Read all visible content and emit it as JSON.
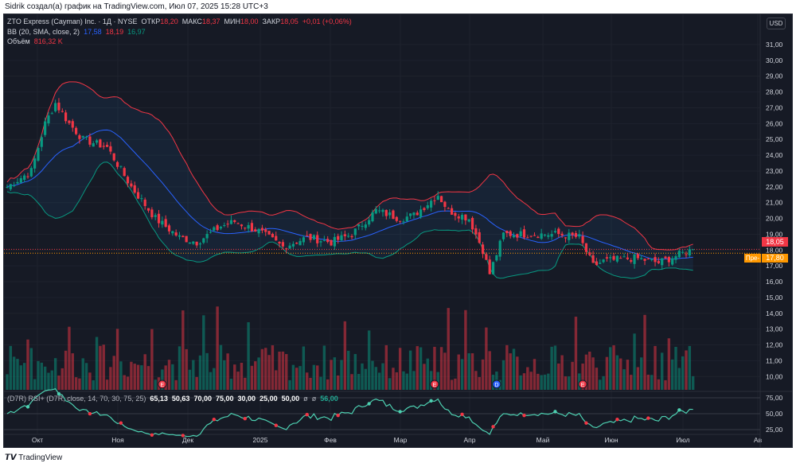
{
  "credit": "Sidrik создал(а) график на TradingView.com, Июл 07, 2025 15:28 UTC+3",
  "legend": {
    "symbol": "ZTO Express (Cayman) Inc. · 1Д · NYSE",
    "open_label": "ОТКР",
    "open": "18,20",
    "high_label": "МАКС",
    "high": "18,37",
    "low_label": "МИН",
    "low": "18,00",
    "close_label": "ЗАКР",
    "close": "18,05",
    "change": "+0,01 (+0,06%)",
    "bb_label": "BB (20, SMA, close, 2)",
    "bb_basis": "17,58",
    "bb_upper": "18,19",
    "bb_lower": "16,97",
    "vol_label": "Объём",
    "vol": "816,32 K"
  },
  "rsi_legend": {
    "label": "(D7R) RSI+ (D7R, close, 14, 70, 30, 75, 25)",
    "values": [
      "65,13",
      "50,63",
      "70,00",
      "75,00",
      "30,00",
      "25,00",
      "50,00",
      "ø",
      "ø"
    ],
    "last": "56,00"
  },
  "currency": "USD",
  "price_labels": {
    "last": "18,05",
    "pre_tag": "Пре-",
    "pre": "17,80"
  },
  "footer_logo": "TradingView",
  "colors": {
    "up": "#089981",
    "down": "#f23645",
    "bb_upper": "#f23645",
    "bb_basis": "#2962ff",
    "bb_lower": "#089981",
    "rsi": "#4dd0b1"
  },
  "chart_data": {
    "type": "candlestick",
    "symbol": "ZTO",
    "interval": "1D",
    "price_ticks": [
      "31,00",
      "30,00",
      "29,00",
      "28,00",
      "27,00",
      "26,00",
      "25,00",
      "24,00",
      "23,00",
      "22,00",
      "21,00",
      "20,00",
      "19,00",
      "18,00",
      "17,00",
      "16,00",
      "15,00",
      "14,00",
      "13,00",
      "12,00",
      "11,00",
      "10,00"
    ],
    "rsi_ticks": [
      "75,00",
      "50,00",
      "25,00"
    ],
    "months": [
      "Окт",
      "Ноя",
      "Дек",
      "2025",
      "Фев",
      "Мар",
      "Апр",
      "Май",
      "Июн",
      "Июл",
      "Ав"
    ],
    "ylim": [
      10,
      31.5
    ],
    "close_keyframes": [
      [
        0,
        22
      ],
      [
        7,
        23
      ],
      [
        11,
        26
      ],
      [
        14,
        27.3
      ],
      [
        18,
        26
      ],
      [
        22,
        25
      ],
      [
        29,
        24.5
      ],
      [
        36,
        22
      ],
      [
        43,
        20
      ],
      [
        50,
        18.8
      ],
      [
        55,
        18.5
      ],
      [
        62,
        19.5
      ],
      [
        66,
        19.8
      ],
      [
        73,
        19.2
      ],
      [
        80,
        18.2
      ],
      [
        87,
        18.8
      ],
      [
        94,
        18.5
      ],
      [
        100,
        19
      ],
      [
        107,
        20.5
      ],
      [
        114,
        20
      ],
      [
        118,
        20.2
      ],
      [
        125,
        21.5
      ],
      [
        128,
        20.5
      ],
      [
        134,
        20
      ],
      [
        138,
        18
      ],
      [
        140,
        16.5
      ],
      [
        144,
        19
      ],
      [
        151,
        19
      ],
      [
        160,
        19
      ],
      [
        166,
        18.8
      ],
      [
        170,
        17
      ],
      [
        173,
        17.3
      ],
      [
        182,
        17.5
      ],
      [
        189,
        17.2
      ],
      [
        199,
        18.05
      ]
    ],
    "events": [
      {
        "bar": 45,
        "label": "E"
      },
      {
        "bar": 124,
        "label": "E"
      },
      {
        "bar": 142,
        "label": "D"
      },
      {
        "bar": 167,
        "label": "E"
      }
    ]
  }
}
